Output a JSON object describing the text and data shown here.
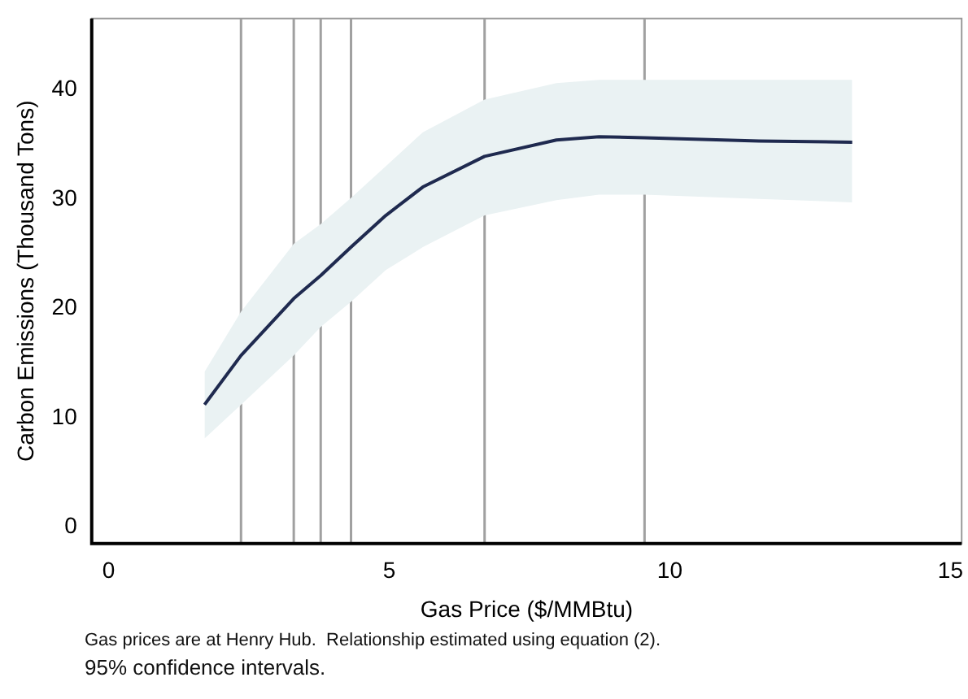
{
  "chart_data": {
    "type": "line",
    "xlabel": "Gas Price ($/MMBtu)",
    "ylabel": "Carbon Emissions (Thousand Tons)",
    "xlim": [
      -0.3,
      15.2
    ],
    "xticks": [
      0,
      5,
      10,
      15
    ],
    "ylim": [
      -1.5,
      46.5
    ],
    "yticks": [
      0,
      10,
      20,
      30,
      40
    ],
    "grid": false,
    "legend": false,
    "marker": "none",
    "line_style": "solid",
    "series": [
      {
        "color": "#1f2a4f",
        "x": [
          1.71,
          2.36,
          3.3,
          3.78,
          4.32,
          4.94,
          5.6,
          6.7,
          7.98,
          8.74,
          9.55,
          11.59,
          13.25
        ],
        "values": [
          11.2,
          15.7,
          20.9,
          23.0,
          25.6,
          28.5,
          31.1,
          33.9,
          35.4,
          35.7,
          35.6,
          35.3,
          35.2
        ],
        "lower": [
          8.1,
          11.2,
          15.7,
          18.3,
          20.6,
          23.5,
          25.6,
          28.5,
          29.9,
          30.4,
          30.4,
          30.0,
          29.7
        ],
        "upper": [
          14.2,
          19.7,
          25.9,
          27.7,
          30.1,
          33.0,
          36.1,
          39.1,
          40.6,
          40.9,
          40.9,
          40.9,
          40.9
        ]
      }
    ],
    "ref_lines": [
      {
        "axis": "x",
        "value": 2.36,
        "color": "#a0a0a0"
      },
      {
        "axis": "x",
        "value": 3.3,
        "color": "#a0a0a0"
      },
      {
        "axis": "x",
        "value": 3.78,
        "color": "#a0a0a0"
      },
      {
        "axis": "x",
        "value": 4.32,
        "color": "#a0a0a0"
      },
      {
        "axis": "x",
        "value": 6.7,
        "color": "#a0a0a0"
      },
      {
        "axis": "x",
        "value": 9.55,
        "color": "#a0a0a0"
      }
    ],
    "annotations": [
      "Gas prices are at Henry Hub.  Relationship estimated using equation (2).",
      "95% confidence intervals."
    ]
  }
}
